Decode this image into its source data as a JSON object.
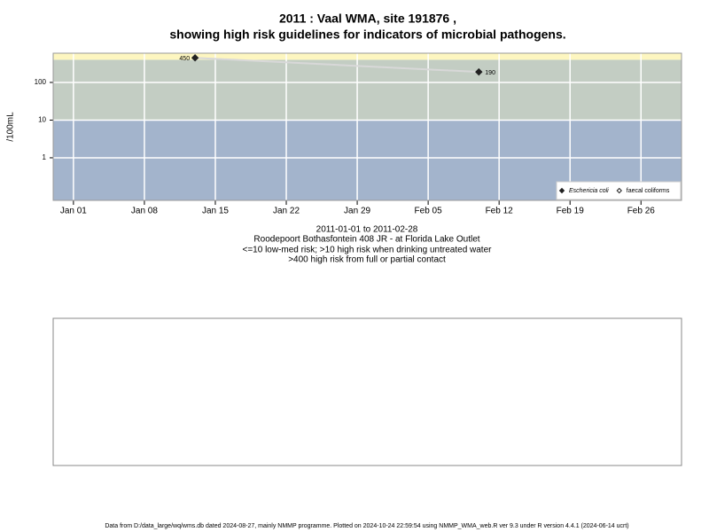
{
  "chart_data": {
    "type": "line",
    "title": "2011 : Vaal WMA, site 191876 ,",
    "subtitle": "showing high risk guidelines for indicators of microbial pathogens.",
    "y_label": "/100mL",
    "log_y": true,
    "grid": true,
    "legend": "bottom-right",
    "x": [
      "2011-01-13",
      "2011-02-10"
    ],
    "series": [
      {
        "name": "Eschericia coli",
        "color": "#222222",
        "line_color": "#d8d8d8",
        "marker": "filled-diamond",
        "values": [
          450,
          190
        ]
      },
      {
        "name": "faecal coliforms",
        "color": "#222222",
        "marker": "open-diamond",
        "values": [
          null,
          null
        ]
      }
    ],
    "thresholds": [
      10,
      400
    ],
    "band_colors": [
      "#a3b4cc",
      "#c3cdc3",
      "#fdf6c0"
    ],
    "xlim": [
      "2010-12-30",
      "2011-03-02"
    ],
    "xticks": [
      {
        "value": "2011-01-01",
        "label": "Jan 01"
      },
      {
        "value": "2011-01-08",
        "label": "Jan 08"
      },
      {
        "value": "2011-01-15",
        "label": "Jan 15"
      },
      {
        "value": "2011-01-22",
        "label": "Jan 22"
      },
      {
        "value": "2011-01-29",
        "label": "Jan 29"
      },
      {
        "value": "2011-02-05",
        "label": "Feb 05"
      },
      {
        "value": "2011-02-12",
        "label": "Feb 12"
      },
      {
        "value": "2011-02-19",
        "label": "Feb 19"
      },
      {
        "value": "2011-02-26",
        "label": "Feb 26"
      }
    ],
    "ylim": [
      0.074,
      597
    ],
    "yticks": [
      1,
      10,
      100
    ],
    "notes": [
      "2011-01-01 to 2011-02-28",
      "Roodepoort Bothasfontein 408 JR - at Florida Lake Outlet",
      "<=10 low-med risk; >10 high risk when drinking untreated water",
      ">400 high risk from full or partial contact"
    ],
    "footer": "Data from D:/data_large/wq/wms.db dated 2024-08-27, mainly NMMP programme. Plotted on 2024-10-24 22:59:54 using NMMP_WMA_web.R ver 9.3 under R version 4.4.1 (2024-06-14 ucrt)"
  }
}
